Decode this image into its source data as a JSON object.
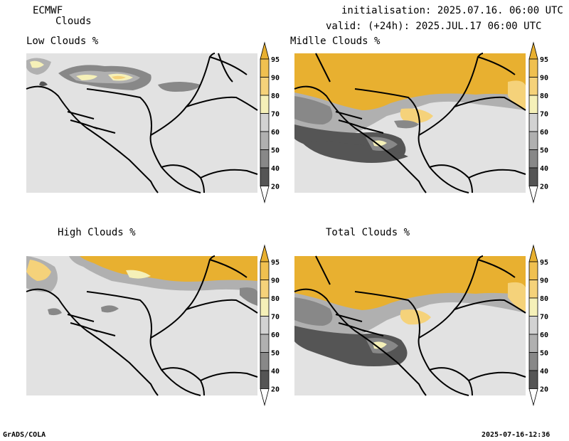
{
  "header": {
    "model": "ECMWF",
    "product": "Clouds",
    "initialisation": "initialisation: 2025.07.16. 06:00 UTC",
    "valid": "valid: (+24h): 2025.JUL.17 06:00 UTC"
  },
  "panels": [
    {
      "title": "Low Clouds %"
    },
    {
      "title": "Midlle Clouds %"
    },
    {
      "title": "High Clouds %"
    },
    {
      "title": "Total Clouds %"
    }
  ],
  "colorbar": {
    "unit": "%",
    "levels": [
      "20",
      "40",
      "50",
      "60",
      "70",
      "80",
      "90",
      "95"
    ],
    "colors": [
      "#ffffff",
      "#555555",
      "#888888",
      "#b0b0b0",
      "#d2d2d2",
      "#f5f0b8",
      "#f5d27a",
      "#f0c050",
      "#e8b030"
    ]
  },
  "colors": {
    "background_land": "#e2e2e2",
    "border_line": "#000000"
  },
  "footer": {
    "left": "GrADS/COLA",
    "right": "2025-07-16-12:36"
  }
}
